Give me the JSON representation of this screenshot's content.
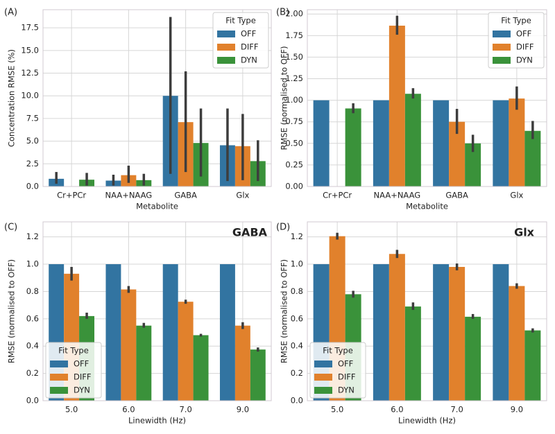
{
  "chart_data": [
    {
      "type": "bar",
      "panel_label": "(A)",
      "xlabel": "Metabolite",
      "ylabel": "Concentration RMSE (%)",
      "categories": [
        "Cr+PCr",
        "NAA+NAAG",
        "GABA",
        "Glx"
      ],
      "series": [
        {
          "name": "OFF",
          "color": "#3274a1",
          "values": [
            0.85,
            0.65,
            10.0,
            4.55
          ],
          "ci_low": [
            0.3,
            0.1,
            1.4,
            0.6
          ],
          "ci_high": [
            1.6,
            1.3,
            18.7,
            8.6
          ]
        },
        {
          "name": "DIFF",
          "color": "#e1812c",
          "values": [
            null,
            1.25,
            7.1,
            4.45
          ],
          "ci_low": [
            null,
            0.4,
            1.6,
            0.7
          ],
          "ci_high": [
            null,
            2.3,
            12.7,
            8.0
          ]
        },
        {
          "name": "DYN",
          "color": "#3a923a",
          "values": [
            0.75,
            0.7,
            4.8,
            2.8
          ],
          "ci_low": [
            0.1,
            0.1,
            1.1,
            0.6
          ],
          "ci_high": [
            1.5,
            1.4,
            8.6,
            5.1
          ]
        }
      ],
      "ylim": [
        0,
        19.5
      ],
      "yticks": [
        {
          "value": 0,
          "label": "0.0"
        },
        2.5,
        {
          "value": 5,
          "label": "5.0"
        },
        7.5,
        {
          "value": 10,
          "label": "10.0"
        },
        12.5,
        {
          "value": 15,
          "label": "15.0"
        },
        17.5
      ],
      "grid": true,
      "legend_title": "Fit Type",
      "legend": "upper right"
    },
    {
      "type": "bar",
      "panel_label": "(B)",
      "xlabel": "Metabolite",
      "ylabel": "RMSE (normalised to OFF)",
      "categories": [
        "Cr+PCr",
        "NAA+NAAG",
        "GABA",
        "Glx"
      ],
      "series": [
        {
          "name": "OFF",
          "color": "#3274a1",
          "values": [
            1.0,
            1.0,
            1.0,
            1.0
          ],
          "ci_low": [
            null,
            null,
            null,
            null
          ],
          "ci_high": [
            null,
            null,
            null,
            null
          ]
        },
        {
          "name": "DIFF",
          "color": "#e1812c",
          "values": [
            null,
            1.865,
            0.75,
            1.02
          ],
          "ci_low": [
            null,
            1.76,
            0.61,
            0.89
          ],
          "ci_high": [
            null,
            1.98,
            0.9,
            1.16
          ]
        },
        {
          "name": "DYN",
          "color": "#3a923a",
          "values": [
            0.905,
            1.075,
            0.5,
            0.645
          ],
          "ci_low": [
            0.85,
            1.02,
            0.4,
            0.55
          ],
          "ci_high": [
            0.965,
            1.14,
            0.6,
            0.76
          ]
        }
      ],
      "ylim": [
        0,
        2.05
      ],
      "yticks": [
        {
          "value": 0,
          "label": "0.00"
        },
        0.25,
        {
          "value": 0.5,
          "label": "0.50"
        },
        0.75,
        {
          "value": 1,
          "label": "1.00"
        },
        1.25,
        {
          "value": 1.5,
          "label": "1.50"
        },
        1.75,
        {
          "value": 2,
          "label": "2.00"
        }
      ],
      "grid": true,
      "legend_title": "Fit Type",
      "legend": "upper right"
    },
    {
      "type": "bar",
      "panel_label": "(C)",
      "annotation": "GABA",
      "xlabel": "Linewidth (Hz)",
      "ylabel": "RMSE (normalised to OFF)",
      "categories": [
        "5.0",
        "6.0",
        "7.0",
        "9.0"
      ],
      "series": [
        {
          "name": "OFF",
          "color": "#3274a1",
          "values": [
            1.0,
            1.0,
            1.0,
            1.0
          ],
          "ci_low": [
            null,
            null,
            null,
            null
          ],
          "ci_high": [
            null,
            null,
            null,
            null
          ]
        },
        {
          "name": "DIFF",
          "color": "#e1812c",
          "values": [
            0.93,
            0.815,
            0.725,
            0.55
          ],
          "ci_low": [
            0.88,
            0.79,
            0.71,
            0.525
          ],
          "ci_high": [
            0.98,
            0.84,
            0.74,
            0.575
          ]
        },
        {
          "name": "DYN",
          "color": "#3a923a",
          "values": [
            0.62,
            0.55,
            0.48,
            0.375
          ],
          "ci_low": [
            0.6,
            0.535,
            0.47,
            0.36
          ],
          "ci_high": [
            0.645,
            0.57,
            0.49,
            0.39
          ]
        }
      ],
      "ylim": [
        0,
        1.31
      ],
      "yticks": [
        {
          "value": 0,
          "label": "0.0"
        },
        0.2,
        0.4,
        0.6,
        0.8,
        {
          "value": 1,
          "label": "1.0"
        },
        1.2
      ],
      "grid": true,
      "legend_title": "Fit Type",
      "legend": "lower left"
    },
    {
      "type": "bar",
      "panel_label": "(D)",
      "annotation": "Glx",
      "xlabel": "Linewidth (Hz)",
      "ylabel": "RMSE (normalised to OFF)",
      "categories": [
        "5.0",
        "6.0",
        "7.0",
        "9.0"
      ],
      "series": [
        {
          "name": "OFF",
          "color": "#3274a1",
          "values": [
            1.0,
            1.0,
            1.0,
            1.0
          ],
          "ci_low": [
            null,
            null,
            null,
            null
          ],
          "ci_high": [
            null,
            null,
            null,
            null
          ]
        },
        {
          "name": "DIFF",
          "color": "#e1812c",
          "values": [
            1.205,
            1.075,
            0.98,
            0.84
          ],
          "ci_low": [
            1.18,
            1.045,
            0.955,
            0.82
          ],
          "ci_high": [
            1.23,
            1.105,
            1.005,
            0.86
          ]
        },
        {
          "name": "DYN",
          "color": "#3a923a",
          "values": [
            0.78,
            0.69,
            0.615,
            0.515
          ],
          "ci_low": [
            0.755,
            0.665,
            0.6,
            0.5
          ],
          "ci_high": [
            0.805,
            0.72,
            0.635,
            0.53
          ]
        }
      ],
      "ylim": [
        0,
        1.31
      ],
      "yticks": [
        {
          "value": 0,
          "label": "0.0"
        },
        0.2,
        0.4,
        0.6,
        0.8,
        {
          "value": 1,
          "label": "1.0"
        },
        1.2
      ],
      "grid": true,
      "legend_title": "Fit Type",
      "legend": "lower left"
    }
  ]
}
